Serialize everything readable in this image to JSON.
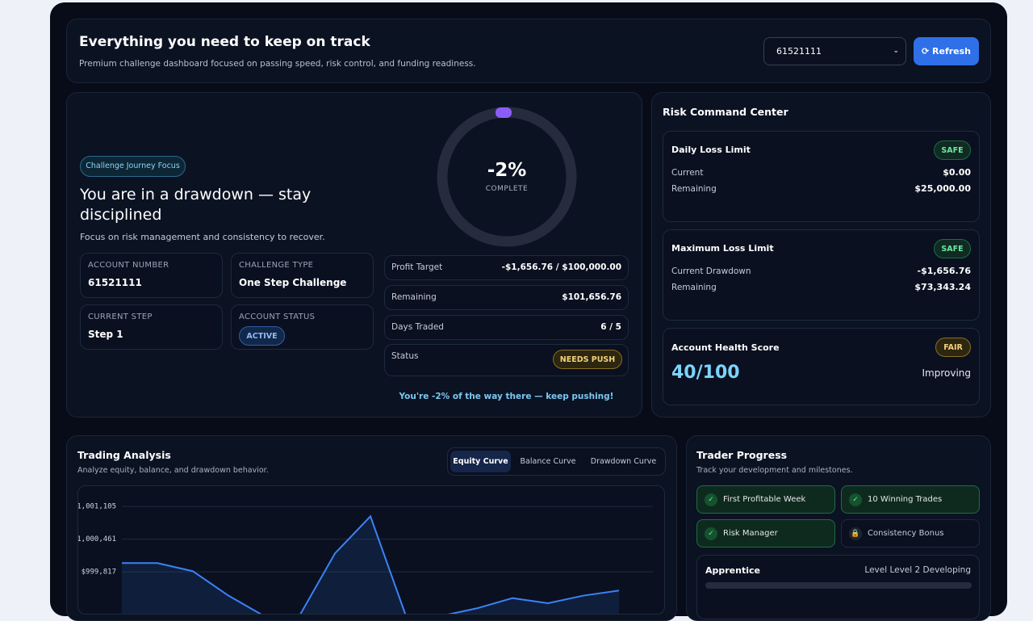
{
  "header": {
    "title": "Everything you need to keep on track",
    "subtitle": "Premium challenge dashboard focused on passing speed, risk control, and funding readiness.",
    "account_select": "61521111",
    "refresh": "Refresh"
  },
  "journey": {
    "badge": "Challenge Journey Focus",
    "heading": "You are in a drawdown — stay disciplined",
    "subheading": "Focus on risk management and consistency to recover.",
    "info": [
      {
        "label": "ACCOUNT NUMBER",
        "value": "61521111"
      },
      {
        "label": "CHALLENGE TYPE",
        "value": "One Step Challenge"
      },
      {
        "label": "CURRENT STEP",
        "value": "Step 1"
      },
      {
        "label": "ACCOUNT STATUS",
        "value": "ACTIVE"
      }
    ],
    "progress_label": "-2%",
    "progress_caption": "COMPLETE",
    "stats": [
      {
        "label": "Profit Target",
        "value": "-$1,656.76 / $100,000.00"
      },
      {
        "label": "Remaining",
        "value": "$101,656.76"
      },
      {
        "label": "Days Traded",
        "value": "6 / 5"
      },
      {
        "label": "Status",
        "value": "NEEDS PUSH"
      }
    ],
    "footer": "You're -2% of the way there — keep pushing!"
  },
  "risk": {
    "title": "Risk Command Center",
    "cards": [
      {
        "title": "Daily Loss Limit",
        "badge": "SAFE",
        "rows": [
          {
            "label": "Current",
            "value": "$0.00"
          },
          {
            "label": "Remaining",
            "value": "$25,000.00"
          }
        ]
      },
      {
        "title": "Maximum Loss Limit",
        "badge": "SAFE",
        "rows": [
          {
            "label": "Current Drawdown",
            "value": "-$1,656.76"
          },
          {
            "label": "Remaining",
            "value": "$73,343.24"
          }
        ]
      }
    ],
    "health": {
      "title": "Account Health Score",
      "badge": "FAIR",
      "score": "40/100",
      "trend": "Improving"
    }
  },
  "analysis": {
    "title": "Trading Analysis",
    "subtitle": "Analyze equity, balance, and drawdown behavior.",
    "tabs": [
      "Equity Curve",
      "Balance Curve",
      "Drawdown Curve"
    ],
    "chart_data": {
      "type": "area",
      "values": [
        999990,
        999990,
        999830,
        999350,
        998950,
        998950,
        1000180,
        1000910,
        998950,
        998950,
        999100,
        999300,
        999200,
        999350,
        999450
      ],
      "color": "#3b82f6",
      "ylim": [
        998850,
        1001330
      ],
      "yticks": [
        {
          "value": 1001105,
          "label": "$1,001,105"
        },
        {
          "value": 1000461,
          "label": "$1,000,461"
        },
        {
          "value": 999817,
          "label": "$999,817"
        }
      ],
      "grid": true
    }
  },
  "progress": {
    "title": "Trader Progress",
    "subtitle": "Track your development and milestones.",
    "milestones": [
      {
        "name": "First Profitable Week",
        "done": true
      },
      {
        "name": "10 Winning Trades",
        "done": true
      },
      {
        "name": "Risk Manager",
        "done": true
      },
      {
        "name": "Consistency Bonus",
        "done": false
      }
    ],
    "level_name": "Apprentice",
    "level_detail": "Level Level 2 Developing"
  }
}
